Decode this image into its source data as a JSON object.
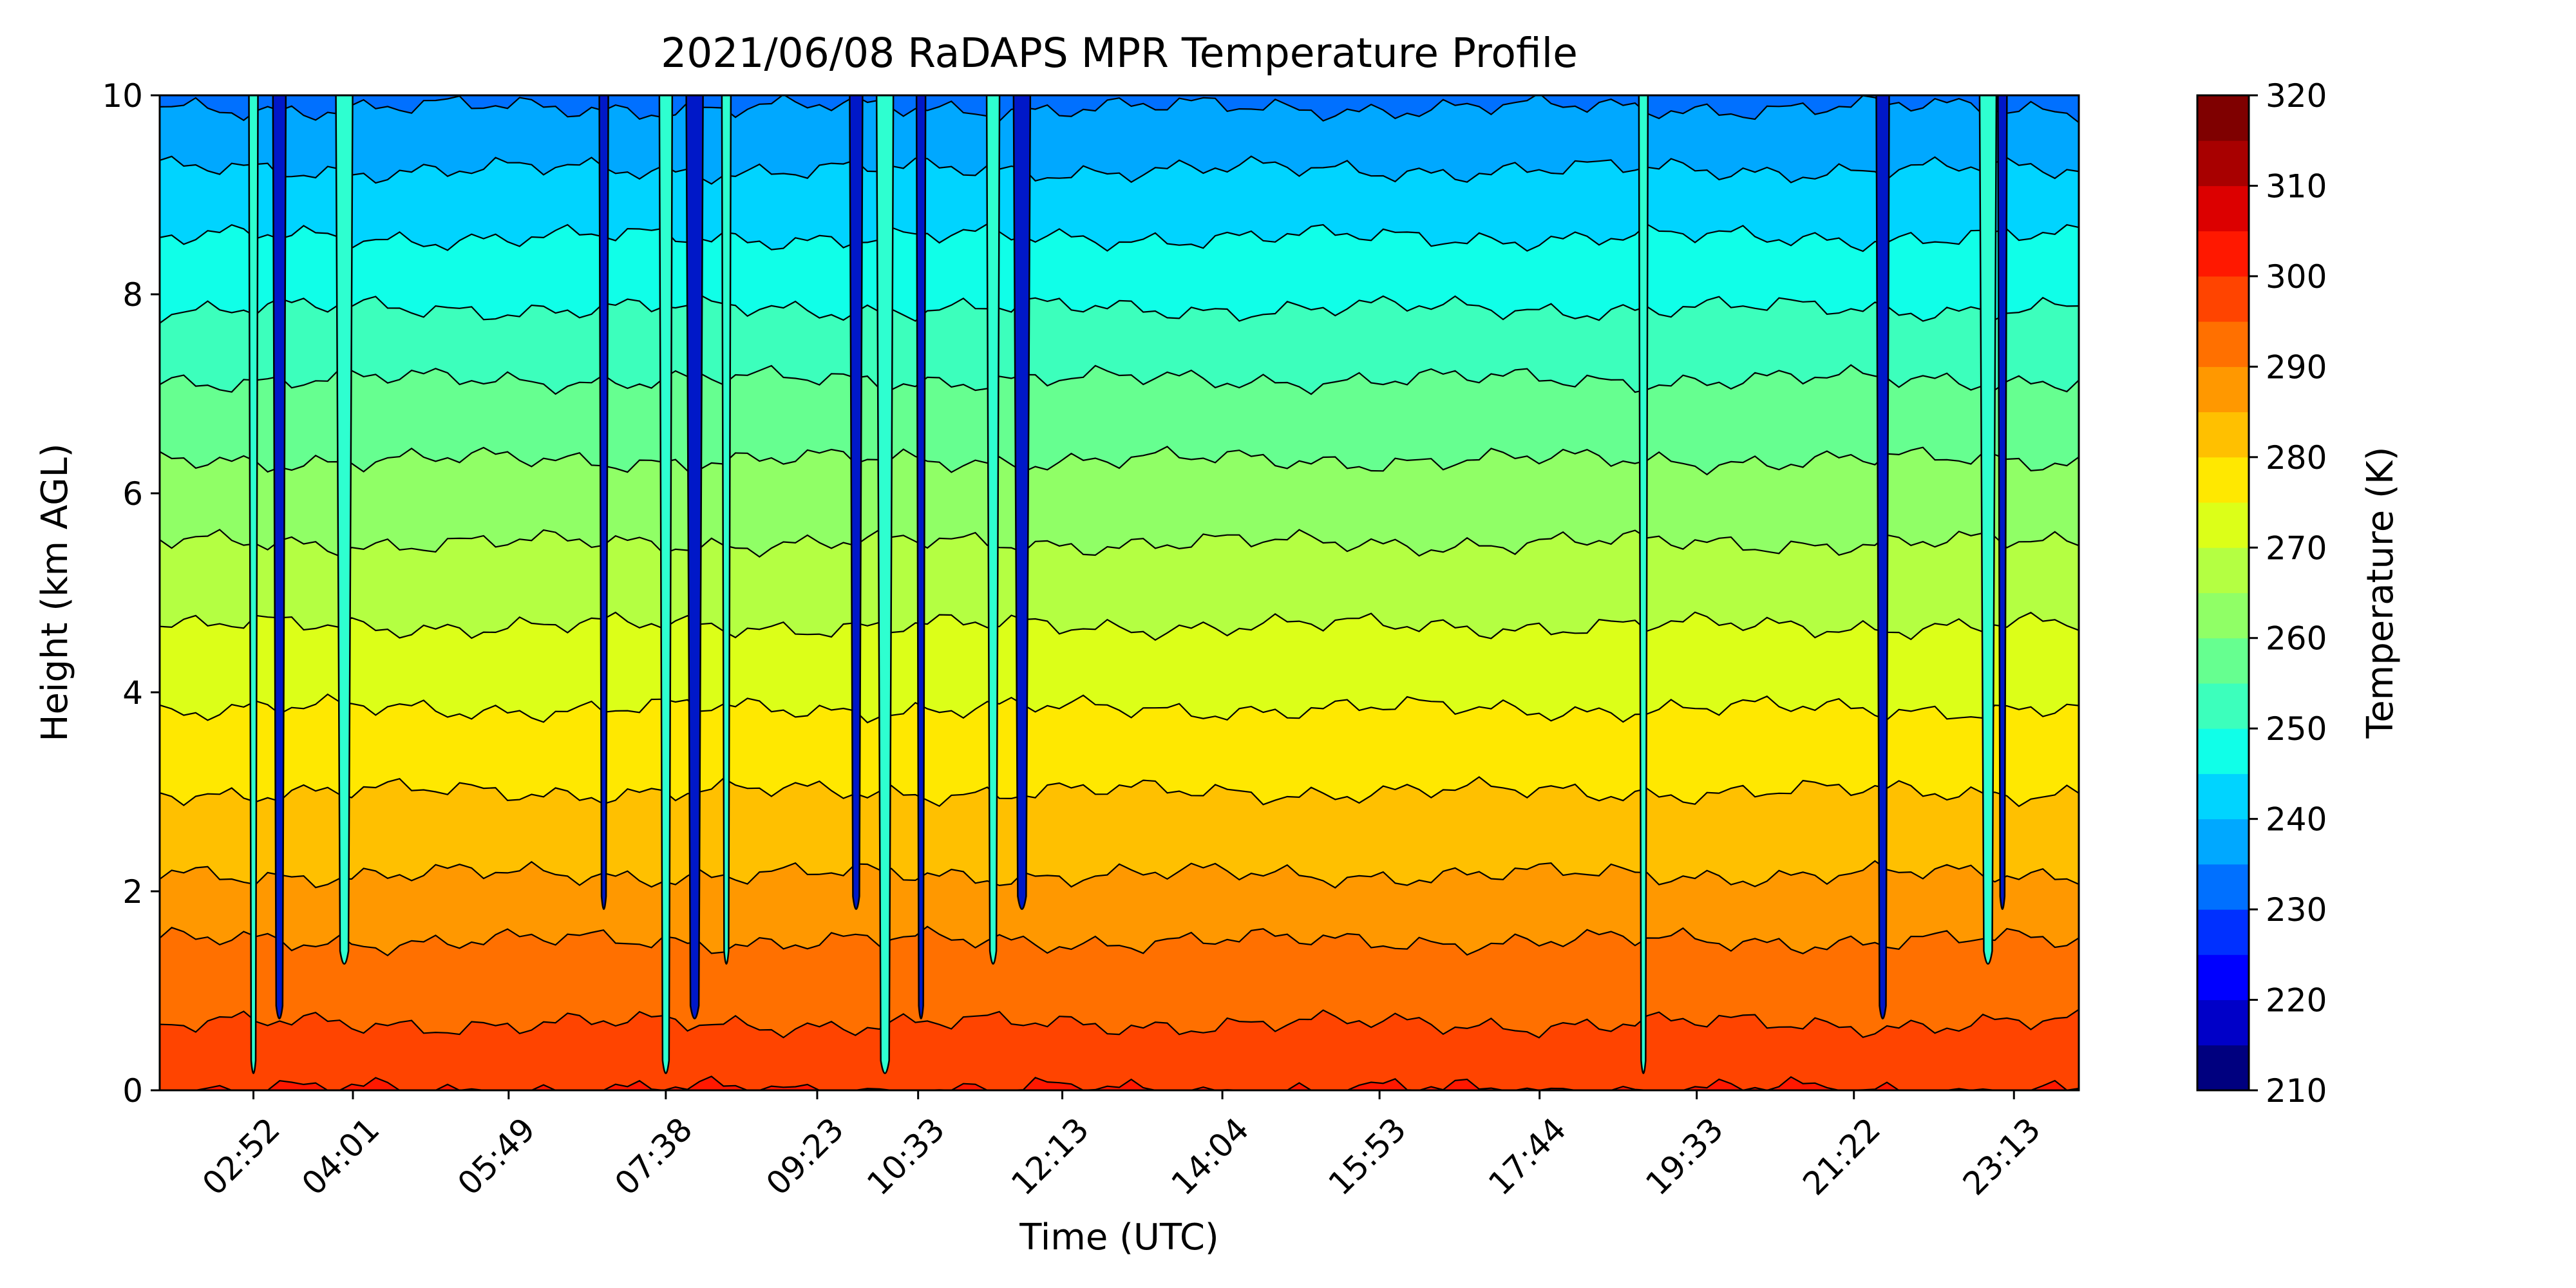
{
  "chart_data": {
    "type": "heatmap",
    "title": "2021/06/08 RaDAPS MPR Temperature Profile",
    "xlabel": "Time (UTC)",
    "ylabel": "Height (km AGL)",
    "colorbar_label": "Temperature (K)",
    "x_ticks": [
      "02:52",
      "04:01",
      "05:49",
      "07:38",
      "09:23",
      "10:33",
      "12:13",
      "14:04",
      "15:53",
      "17:44",
      "19:33",
      "21:22",
      "23:13"
    ],
    "y_ticks": [
      "0",
      "2",
      "4",
      "6",
      "8",
      "10"
    ],
    "colorbar_ticks": [
      "210",
      "220",
      "230",
      "240",
      "250",
      "260",
      "270",
      "280",
      "290",
      "300",
      "310",
      "320"
    ],
    "ylim": [
      0,
      10
    ],
    "clim": [
      210,
      320
    ],
    "levels": [
      210,
      215,
      220,
      225,
      230,
      235,
      240,
      245,
      250,
      255,
      260,
      265,
      270,
      275,
      280,
      285,
      290,
      295,
      300,
      305,
      310,
      315,
      320
    ],
    "colormap": "jet",
    "level_colors": [
      "#00007f",
      "#0000c8",
      "#0000ff",
      "#0030ff",
      "#0070ff",
      "#00a8ff",
      "#00d4ff",
      "#10ffe8",
      "#3cffbc",
      "#66ff90",
      "#90ff66",
      "#b4ff42",
      "#dcff18",
      "#ffe800",
      "#ffc000",
      "#ff9800",
      "#ff7000",
      "#ff4400",
      "#ff1800",
      "#dc0000",
      "#a80000",
      "#7f0000"
    ],
    "profile": {
      "heights_km": [
        0,
        0.5,
        1,
        1.5,
        2,
        3,
        4,
        5,
        6,
        7,
        8,
        9,
        10
      ],
      "temperature_k": [
        300,
        296,
        293,
        290,
        286,
        280,
        274,
        268,
        262,
        256,
        249,
        242,
        234
      ]
    },
    "anomaly_times_utc": [
      "02:52",
      "03:10",
      "03:55",
      "06:55",
      "07:38",
      "07:58",
      "08:20",
      "09:50",
      "10:10",
      "10:35",
      "11:25",
      "11:45",
      "18:56",
      "21:42",
      "22:55",
      "23:05"
    ],
    "grid": false,
    "legend": "colorbar-right"
  }
}
